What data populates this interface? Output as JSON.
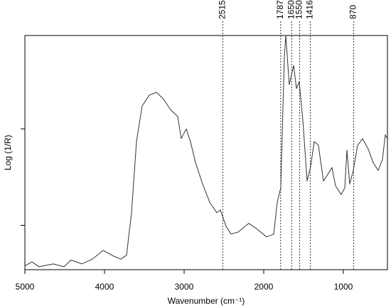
{
  "chart_data": {
    "type": "line",
    "xlabel": "Wavenumber (cm⁻¹)",
    "ylabel": "Log (1/R)",
    "x": [
      5000,
      4911,
      4821,
      4643,
      4509,
      4420,
      4286,
      4152,
      4018,
      3884,
      3795,
      3723,
      3661,
      3598,
      3527,
      3438,
      3348,
      3259,
      3170,
      3080,
      3036,
      2973,
      2920,
      2857,
      2768,
      2679,
      2589,
      2545,
      2473,
      2411,
      2321,
      2188,
      2098,
      1964,
      1875,
      1830,
      1786,
      1741,
      1723,
      1679,
      1625,
      1589,
      1554,
      1509,
      1455,
      1411,
      1366,
      1313,
      1250,
      1187,
      1143,
      1098,
      1027,
      982,
      955,
      920,
      875,
      821,
      759,
      687,
      625,
      563,
      509,
      473,
      446
    ],
    "values": [
      0.58,
      0.62,
      0.57,
      0.6,
      0.57,
      0.64,
      0.6,
      0.65,
      0.74,
      0.68,
      0.65,
      0.69,
      1.13,
      1.87,
      2.24,
      2.35,
      2.38,
      2.31,
      2.2,
      2.13,
      1.9,
      2.0,
      1.87,
      1.65,
      1.43,
      1.24,
      1.13,
      1.16,
      0.99,
      0.91,
      0.93,
      1.02,
      0.97,
      0.88,
      0.91,
      1.24,
      1.39,
      2.75,
      2.97,
      2.46,
      2.66,
      2.42,
      2.49,
      2.09,
      1.46,
      1.61,
      1.87,
      1.83,
      1.46,
      1.54,
      1.6,
      1.41,
      1.32,
      1.39,
      1.78,
      1.43,
      1.57,
      1.83,
      1.9,
      1.79,
      1.65,
      1.57,
      1.68,
      1.94,
      1.9
    ],
    "color": "#333333",
    "xlim": [
      5000,
      446
    ],
    "xticks": [
      5000,
      4000,
      3000,
      2000,
      1000
    ],
    "ylim": [
      0.54,
      2.97
    ],
    "yticks": [
      1,
      2
    ],
    "ytick_labels": false,
    "vlines": [
      2515,
      1787,
      1650,
      1550,
      1416,
      870
    ]
  }
}
